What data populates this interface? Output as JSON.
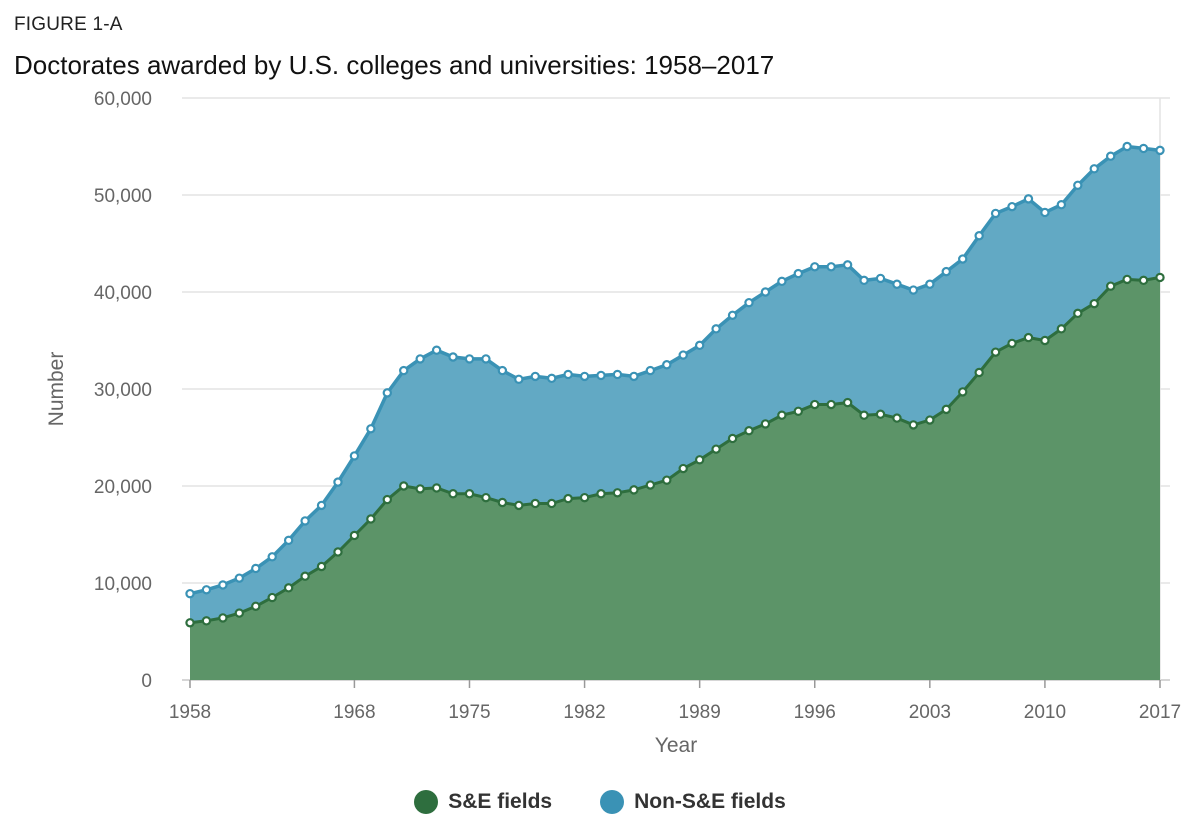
{
  "figure_label": "FIGURE 1-A",
  "colors": {
    "se_fill": "#5c9468",
    "se_line": "#2e6e3e",
    "nonse_fill": "#62a9c4",
    "nonse_line": "#3a92b5",
    "grid": "#e3e3e3",
    "legend_se": "#2e6e3e",
    "legend_nonse": "#3a92b5"
  },
  "chart_data": {
    "type": "area",
    "title": "Doctorates awarded by U.S. colleges and universities: 1958–2017",
    "xlabel": "Year",
    "ylabel": "Number",
    "ylim": [
      0,
      60000
    ],
    "xlim": [
      1958,
      2017
    ],
    "y_ticks": [
      "0",
      "10,000",
      "20,000",
      "30,000",
      "40,000",
      "50,000",
      "60,000"
    ],
    "y_tick_values": [
      0,
      10000,
      20000,
      30000,
      40000,
      50000,
      60000
    ],
    "x_ticks": [
      "1958",
      "1968",
      "1975",
      "1982",
      "1989",
      "1996",
      "2003",
      "2010",
      "2017"
    ],
    "x_tick_values": [
      1958,
      1968,
      1975,
      1982,
      1989,
      1996,
      2003,
      2010,
      2017
    ],
    "x": [
      1958,
      1959,
      1960,
      1961,
      1962,
      1963,
      1964,
      1965,
      1966,
      1967,
      1968,
      1969,
      1970,
      1971,
      1972,
      1973,
      1974,
      1975,
      1976,
      1977,
      1978,
      1979,
      1980,
      1981,
      1982,
      1983,
      1984,
      1985,
      1986,
      1987,
      1988,
      1989,
      1990,
      1991,
      1992,
      1993,
      1994,
      1995,
      1996,
      1997,
      1998,
      1999,
      2000,
      2001,
      2002,
      2003,
      2004,
      2005,
      2006,
      2007,
      2008,
      2009,
      2010,
      2011,
      2012,
      2013,
      2014,
      2015,
      2016,
      2017
    ],
    "series": [
      {
        "name": "S&E fields",
        "stacked": true,
        "values": [
          5900,
          6100,
          6400,
          6900,
          7600,
          8500,
          9500,
          10700,
          11700,
          13200,
          14900,
          16600,
          18600,
          20000,
          19700,
          19800,
          19200,
          19200,
          18800,
          18300,
          18000,
          18200,
          18200,
          18700,
          18800,
          19200,
          19300,
          19600,
          20100,
          20600,
          21800,
          22700,
          23800,
          24900,
          25700,
          26400,
          27300,
          27700,
          28400,
          28400,
          28600,
          27300,
          27400,
          27000,
          26300,
          26800,
          27900,
          29700,
          31700,
          33800,
          34700,
          35300,
          35000,
          36200,
          37800,
          38800,
          40600,
          41300,
          41200,
          41500
        ]
      },
      {
        "name": "Non-S&E fields",
        "stacked": true,
        "values": [
          3000,
          3200,
          3400,
          3600,
          3900,
          4200,
          4900,
          5700,
          6300,
          7200,
          8200,
          9300,
          11000,
          11900,
          13400,
          14200,
          14100,
          13900,
          14300,
          13600,
          13000,
          13100,
          12900,
          12800,
          12500,
          12200,
          12200,
          11700,
          11800,
          11900,
          11700,
          11800,
          12400,
          12700,
          13200,
          13600,
          13800,
          14200,
          14200,
          14200,
          14200,
          13900,
          14000,
          13800,
          13900,
          14000,
          14200,
          13700,
          14100,
          14300,
          14100,
          14300,
          13200,
          12800,
          13200,
          13900,
          13400,
          13700,
          13600,
          13100
        ]
      }
    ]
  }
}
